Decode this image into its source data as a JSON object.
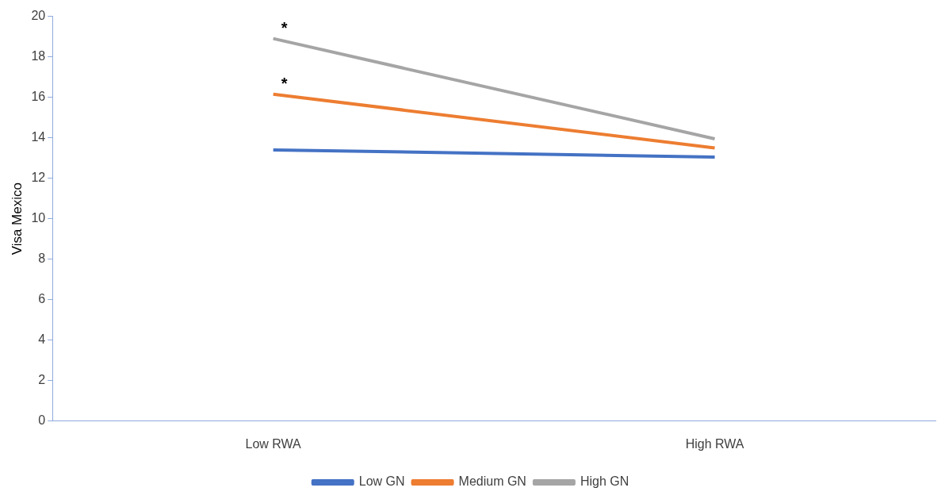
{
  "chart_data": {
    "type": "line",
    "ylabel": "Visa Mexico",
    "categories": [
      "Low RWA",
      "High RWA"
    ],
    "series": [
      {
        "name": "Low GN",
        "color": "#4472c4",
        "values": [
          13.4,
          13.05
        ]
      },
      {
        "name": "Medium GN",
        "color": "#ed7d31",
        "values": [
          16.15,
          13.5
        ]
      },
      {
        "name": "High GN",
        "color": "#a5a5a5",
        "values": [
          18.9,
          13.95
        ]
      }
    ],
    "ylim": [
      0,
      20
    ],
    "yticks": [
      0,
      2,
      4,
      6,
      8,
      10,
      12,
      14,
      16,
      18,
      20
    ],
    "grid": false,
    "legend": "bottom",
    "marker": "none",
    "line_style": "solid",
    "annotations": [
      {
        "text": "*",
        "x": "Low RWA",
        "y": 18.9
      },
      {
        "text": "*",
        "x": "Low RWA",
        "y": 16.15
      }
    ]
  }
}
